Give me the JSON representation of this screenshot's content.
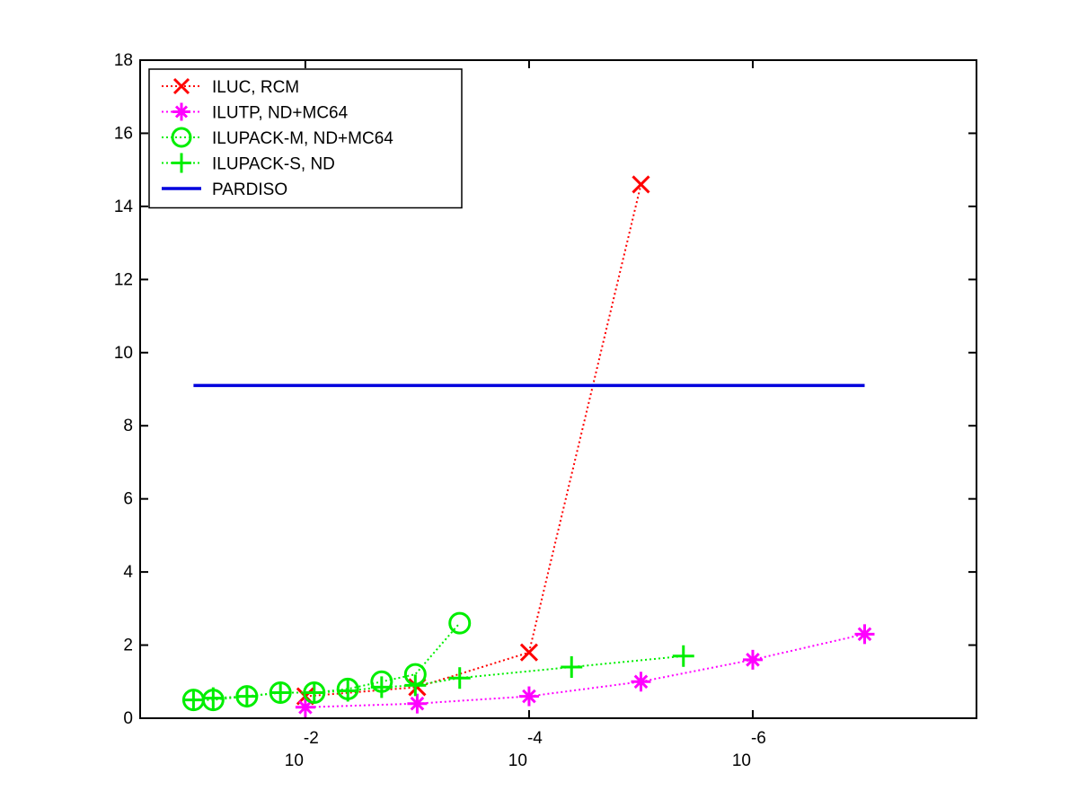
{
  "chart_data": {
    "type": "line",
    "x_scale": "log-reversed",
    "x_ticks": [
      {
        "base": "10",
        "exp": "-2",
        "value": 0.01
      },
      {
        "base": "10",
        "exp": "-4",
        "value": 0.0001
      },
      {
        "base": "10",
        "exp": "-6",
        "value": 1e-06
      }
    ],
    "xlim": [
      0.3,
      1e-08
    ],
    "ylim": [
      0,
      18
    ],
    "y_ticks": [
      "0",
      "2",
      "4",
      "6",
      "8",
      "10",
      "12",
      "14",
      "16",
      "18"
    ],
    "grid": false,
    "legend_position": "top-left",
    "series": [
      {
        "name": "ILUC, RCM",
        "color": "#ff0000",
        "marker": "x",
        "line": "dotted",
        "points": [
          {
            "x": 0.01,
            "y": 0.6
          },
          {
            "x": 0.001,
            "y": 0.85
          },
          {
            "x": 0.0001,
            "y": 1.8
          },
          {
            "x": 1e-05,
            "y": 14.6
          }
        ]
      },
      {
        "name": "ILUTP,  ND+MC64",
        "color": "#ff00ff",
        "marker": "asterisk",
        "line": "dotted",
        "points": [
          {
            "x": 0.01,
            "y": 0.3
          },
          {
            "x": 0.001,
            "y": 0.4
          },
          {
            "x": 0.0001,
            "y": 0.6
          },
          {
            "x": 1e-05,
            "y": 1.0
          },
          {
            "x": 1e-06,
            "y": 1.6
          },
          {
            "x": 1e-07,
            "y": 2.3
          }
        ]
      },
      {
        "name": "ILUPACK-M, ND+MC64",
        "color": "#00ee00",
        "marker": "circle",
        "line": "dotted",
        "points": [
          {
            "x": 0.1,
            "y": 0.5
          },
          {
            "x": 0.0667,
            "y": 0.5
          },
          {
            "x": 0.0333,
            "y": 0.6
          },
          {
            "x": 0.0167,
            "y": 0.7
          },
          {
            "x": 0.00833,
            "y": 0.7
          },
          {
            "x": 0.00417,
            "y": 0.8
          },
          {
            "x": 0.00208,
            "y": 1.0
          },
          {
            "x": 0.00104,
            "y": 1.2
          },
          {
            "x": 0.000417,
            "y": 2.6
          }
        ]
      },
      {
        "name": "ILUPACK-S, ND",
        "color": "#00ee00",
        "marker": "plus",
        "line": "dotted",
        "points": [
          {
            "x": 0.1,
            "y": 0.5
          },
          {
            "x": 0.0667,
            "y": 0.55
          },
          {
            "x": 0.0333,
            "y": 0.6
          },
          {
            "x": 0.0167,
            "y": 0.7
          },
          {
            "x": 0.00833,
            "y": 0.7
          },
          {
            "x": 0.00417,
            "y": 0.75
          },
          {
            "x": 0.00208,
            "y": 0.85
          },
          {
            "x": 0.00104,
            "y": 0.9
          },
          {
            "x": 0.000417,
            "y": 1.1
          },
          {
            "x": 4.17e-05,
            "y": 1.4
          },
          {
            "x": 4.17e-06,
            "y": 1.7
          }
        ]
      },
      {
        "name": "PARDISO",
        "color": "#0000dd",
        "marker": "none",
        "line": "solid",
        "points": [
          {
            "x": 0.1,
            "y": 9.1
          },
          {
            "x": 1e-07,
            "y": 9.1
          }
        ]
      }
    ]
  }
}
